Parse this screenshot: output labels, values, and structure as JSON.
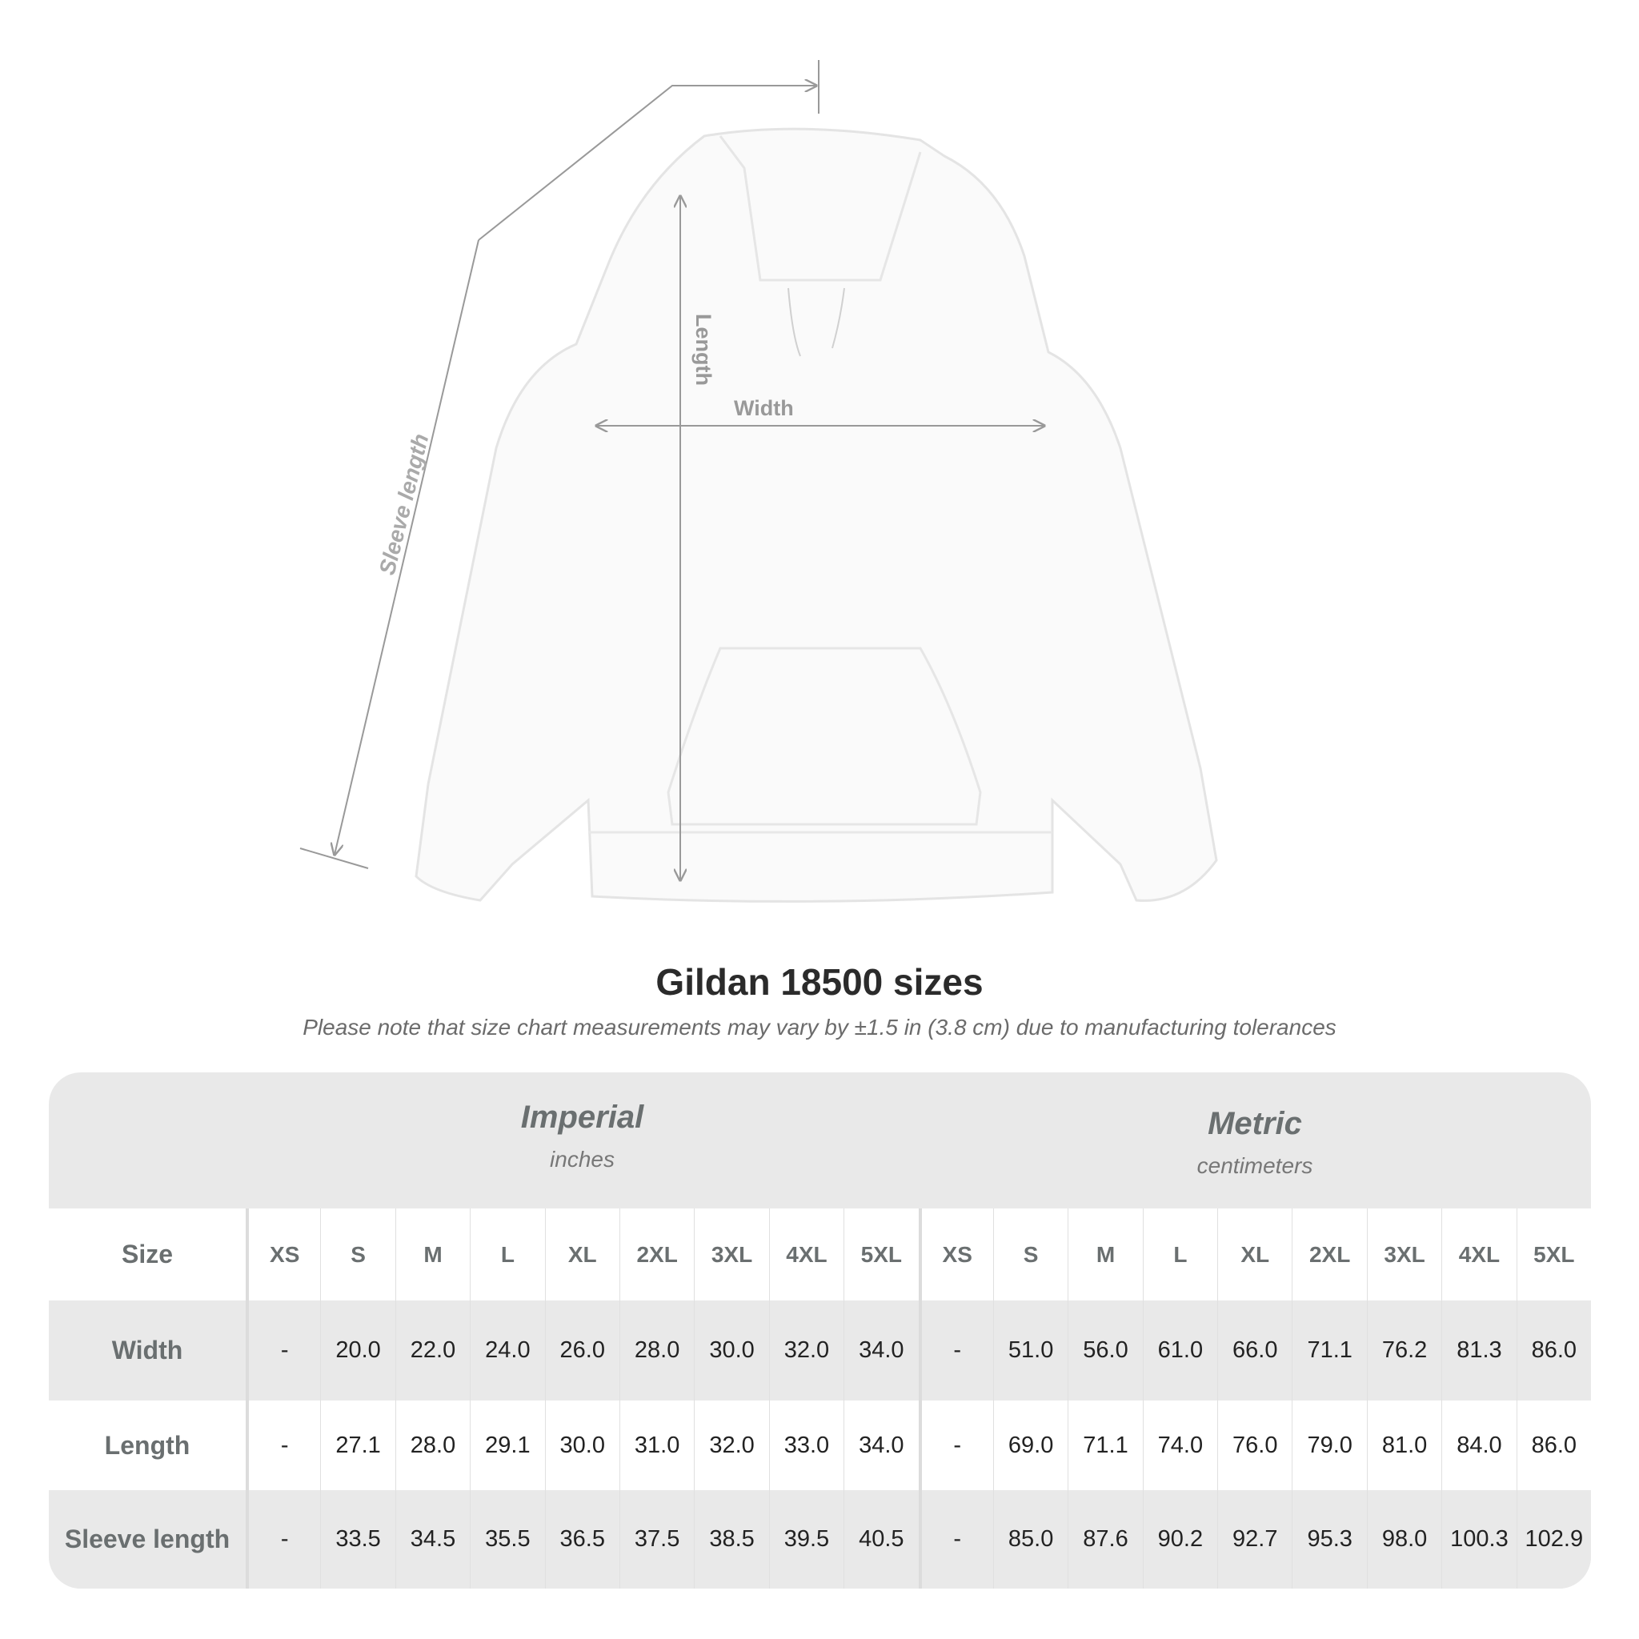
{
  "diagram": {
    "labels": {
      "sleeve": "Sleeve length",
      "length": "Length",
      "width": "Width"
    },
    "garment_color": "#fafafa"
  },
  "title": "Gildan 18500 sizes",
  "note": "Please note that size chart measurements may vary by ±1.5 in (3.8 cm) due to manufacturing tolerances",
  "table": {
    "imperial": {
      "title": "Imperial",
      "unit": "inches"
    },
    "metric": {
      "title": "Metric",
      "unit": "centimeters"
    },
    "size_label": "Size",
    "sizes": [
      "XS",
      "S",
      "M",
      "L",
      "XL",
      "2XL",
      "3XL",
      "4XL",
      "5XL"
    ],
    "rows": [
      {
        "label": "Width",
        "imperial": [
          "-",
          "20.0",
          "22.0",
          "24.0",
          "26.0",
          "28.0",
          "30.0",
          "32.0",
          "34.0"
        ],
        "metric": [
          "-",
          "51.0",
          "56.0",
          "61.0",
          "66.0",
          "71.1",
          "76.2",
          "81.3",
          "86.0"
        ]
      },
      {
        "label": "Length",
        "imperial": [
          "-",
          "27.1",
          "28.0",
          "29.1",
          "30.0",
          "31.0",
          "32.0",
          "33.0",
          "34.0"
        ],
        "metric": [
          "-",
          "69.0",
          "71.1",
          "74.0",
          "76.0",
          "79.0",
          "81.0",
          "84.0",
          "86.0"
        ]
      },
      {
        "label": "Sleeve length",
        "imperial": [
          "-",
          "33.5",
          "34.5",
          "35.5",
          "36.5",
          "37.5",
          "38.5",
          "39.5",
          "40.5"
        ],
        "metric": [
          "-",
          "85.0",
          "87.6",
          "90.2",
          "92.7",
          "95.3",
          "98.0",
          "100.3",
          "102.9"
        ]
      }
    ],
    "colors": {
      "header_bg": "#e9e9e9",
      "label_text": "#6a6f70"
    }
  }
}
